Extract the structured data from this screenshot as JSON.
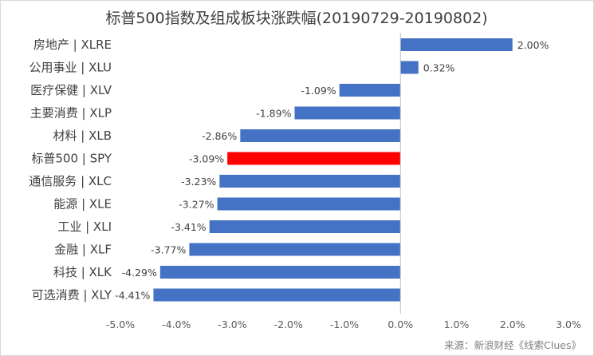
{
  "chart_data": {
    "type": "bar",
    "orientation": "horizontal",
    "title": "标普500指数及组成板块涨跌幅(20190729-20190802)",
    "categories": [
      "房地产 | XLRE",
      "公用事业 | XLU",
      "医疗保健 | XLV",
      "主要消费 | XLP",
      "材料 | XLB",
      "标普500 | SPY",
      "通信服务 | XLC",
      "能源 | XLE",
      "工业 | XLI",
      "金融 | XLF",
      "科技 | XLK",
      "可选消费 | XLY"
    ],
    "values": [
      2.0,
      0.32,
      -1.09,
      -1.89,
      -2.86,
      -3.09,
      -3.23,
      -3.27,
      -3.41,
      -3.77,
      -4.29,
      -4.41
    ],
    "data_labels": [
      "2.00%",
      "0.32%",
      "-1.09%",
      "-1.89%",
      "-2.86%",
      "-3.09%",
      "-3.23%",
      "-3.27%",
      "-3.41%",
      "-3.77%",
      "-4.29%",
      "-4.41%"
    ],
    "xlim": [
      -5.0,
      3.0
    ],
    "x_ticks": [
      -5.0,
      -4.0,
      -3.0,
      -2.0,
      -1.0,
      0.0,
      1.0,
      2.0,
      3.0
    ],
    "x_tick_labels": [
      "-5.0%",
      "-4.0%",
      "-3.0%",
      "-2.0%",
      "-1.0%",
      "0.0%",
      "1.0%",
      "2.0%",
      "3.0%"
    ],
    "bar_color": "#4472c4",
    "highlight_color": "#ff0000",
    "highlight_category": "标普500 | SPY",
    "grid": false,
    "legend": "none"
  },
  "source": "来源：新浪财经《线索Clues》"
}
